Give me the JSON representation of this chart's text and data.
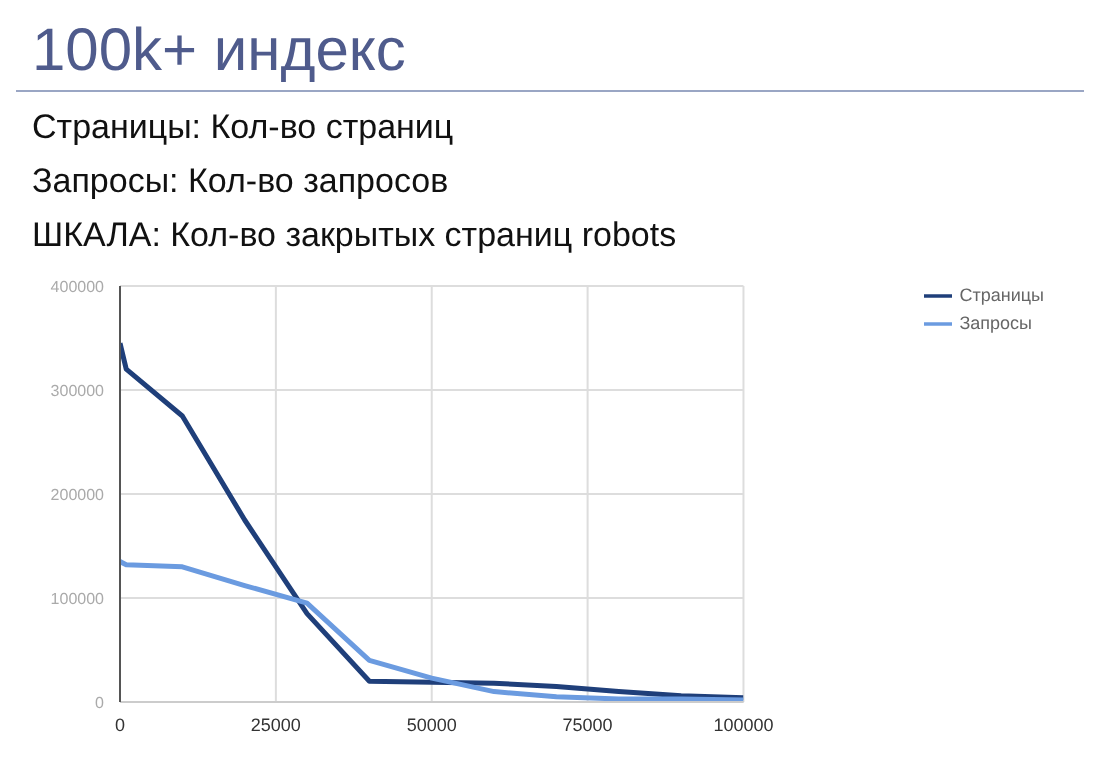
{
  "chart_data": {
    "type": "line",
    "title": "100k+ индекс",
    "annotations": [
      "Страницы: Кол-во страниц",
      "Запросы: Кол-во запросов",
      "ШКАЛА: Кол-во закрытых страниц robots"
    ],
    "x": [
      0,
      1000,
      10000,
      20000,
      30000,
      40000,
      50000,
      60000,
      70000,
      80000,
      90000,
      100000
    ],
    "series": [
      {
        "name": "Страницы",
        "color": "#1f3f7a",
        "values": [
          345000,
          320000,
          275000,
          175000,
          85000,
          20000,
          19000,
          18000,
          15000,
          10000,
          6000,
          4000
        ]
      },
      {
        "name": "Запросы",
        "color": "#6b9be0",
        "values": [
          135000,
          132000,
          130000,
          112000,
          95000,
          40000,
          23000,
          10000,
          5000,
          3000,
          3000,
          2000
        ]
      }
    ],
    "xlim": [
      0,
      100000
    ],
    "xticks": [
      0,
      25000,
      50000,
      75000,
      100000
    ],
    "ylim": [
      0,
      400000
    ],
    "yticks": [
      0,
      100000,
      200000,
      300000,
      400000
    ],
    "grid": true,
    "legend": "top right",
    "marker": "none",
    "line_style": "solid"
  }
}
